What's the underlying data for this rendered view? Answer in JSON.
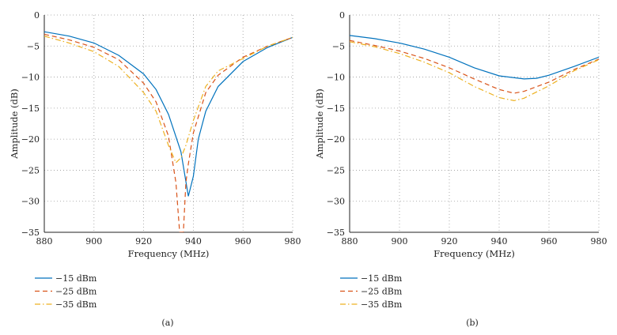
{
  "colors": {
    "s1": "#0072BD",
    "s2": "#D95319",
    "s3": "#EDB120"
  },
  "chart_data": [
    {
      "type": "line",
      "panel_label": "(a)",
      "xlabel": "Frequency (MHz)",
      "ylabel": "Amplitude (dB)",
      "xlim": [
        880,
        980
      ],
      "ylim": [
        -35,
        0
      ],
      "xticks": [
        880,
        900,
        920,
        940,
        960,
        980
      ],
      "yticks": [
        0,
        -5,
        -10,
        -15,
        -20,
        -25,
        -30,
        -35
      ],
      "grid": true,
      "legend_placement": "bottom-left, below plot",
      "series": [
        {
          "name": "−15 dBm",
          "style": "solid",
          "x": [
            880,
            890,
            900,
            910,
            920,
            925,
            930,
            935,
            938,
            940,
            942,
            945,
            950,
            960,
            970,
            980
          ],
          "y": [
            -2.7,
            -3.4,
            -4.5,
            -6.5,
            -9.5,
            -12,
            -16,
            -22,
            -29.2,
            -26,
            -20,
            -15.5,
            -11.5,
            -7.5,
            -5.2,
            -3.6
          ]
        },
        {
          "name": "−25 dBm",
          "style": "dashed",
          "x": [
            880,
            890,
            900,
            910,
            920,
            925,
            930,
            933,
            934.5,
            936,
            937,
            938,
            940,
            945,
            950,
            960,
            970,
            980
          ],
          "y": [
            -3.1,
            -4,
            -5.2,
            -7.2,
            -11,
            -14,
            -19.5,
            -27,
            -35,
            -35,
            -27,
            -24,
            -19,
            -12.5,
            -9.7,
            -6.8,
            -5,
            -3.6
          ]
        },
        {
          "name": "−35 dBm",
          "style": "dashdot",
          "x": [
            880,
            890,
            900,
            910,
            920,
            925,
            930,
            933,
            935,
            937,
            940,
            945,
            950,
            960,
            970,
            980
          ],
          "y": [
            -3.4,
            -4.5,
            -5.9,
            -8.3,
            -12.5,
            -15.5,
            -21,
            -23.8,
            -23,
            -21,
            -17,
            -11.5,
            -9,
            -7,
            -5,
            -3.6
          ]
        }
      ]
    },
    {
      "type": "line",
      "panel_label": "(b)",
      "xlabel": "Frequency (MHz)",
      "ylabel": "Amplitude (dB)",
      "xlim": [
        880,
        980
      ],
      "ylim": [
        -35,
        0
      ],
      "xticks": [
        880,
        900,
        920,
        940,
        960,
        980
      ],
      "yticks": [
        0,
        -5,
        -10,
        -15,
        -20,
        -25,
        -30,
        -35
      ],
      "grid": true,
      "legend_placement": "bottom-left, below plot",
      "series": [
        {
          "name": "−15 dBm",
          "style": "solid",
          "x": [
            880,
            890,
            900,
            910,
            920,
            930,
            940,
            950,
            955,
            960,
            970,
            980
          ],
          "y": [
            -3.3,
            -3.8,
            -4.5,
            -5.5,
            -6.8,
            -8.5,
            -9.8,
            -10.3,
            -10.2,
            -9.7,
            -8.3,
            -6.8
          ]
        },
        {
          "name": "−25 dBm",
          "style": "dashed",
          "x": [
            880,
            890,
            900,
            910,
            920,
            930,
            940,
            946,
            950,
            960,
            970,
            980
          ],
          "y": [
            -4.1,
            -4.9,
            -5.8,
            -7,
            -8.5,
            -10.3,
            -12,
            -12.6,
            -12.3,
            -10.8,
            -8.8,
            -7.1
          ]
        },
        {
          "name": "−35 dBm",
          "style": "dashdot",
          "x": [
            880,
            890,
            900,
            910,
            920,
            930,
            940,
            946,
            950,
            960,
            970,
            980
          ],
          "y": [
            -4.3,
            -5.1,
            -6.2,
            -7.6,
            -9.3,
            -11.5,
            -13.3,
            -13.8,
            -13.4,
            -11.4,
            -9,
            -7.2
          ]
        }
      ]
    }
  ]
}
